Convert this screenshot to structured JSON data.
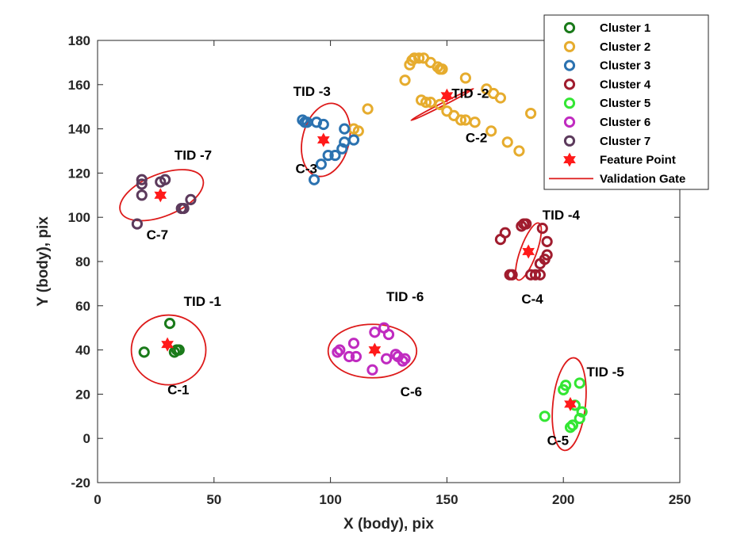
{
  "chart_data": {
    "type": "scatter",
    "xlabel": "X (body), pix",
    "ylabel": "Y (body), pix",
    "xlim": [
      0,
      250
    ],
    "ylim": [
      -20,
      180
    ],
    "xticks": [
      0,
      50,
      100,
      150,
      200,
      250
    ],
    "yticks": [
      -20,
      0,
      20,
      40,
      60,
      80,
      100,
      120,
      140,
      160,
      180
    ],
    "grid": false,
    "legend_position": "top-right",
    "series": [
      {
        "name": "Cluster 1",
        "color": "#1a7a1a",
        "marker": "circle-open",
        "points": [
          [
            20,
            39
          ],
          [
            31,
            52
          ],
          [
            33,
            39
          ],
          [
            34,
            40
          ],
          [
            35,
            40
          ]
        ]
      },
      {
        "name": "Cluster 2",
        "color": "#e6ac2e",
        "marker": "circle-open",
        "points": [
          [
            132,
            162
          ],
          [
            134,
            169
          ],
          [
            135,
            171
          ],
          [
            136,
            172
          ],
          [
            138,
            172
          ],
          [
            140,
            172
          ],
          [
            143,
            170
          ],
          [
            146,
            168
          ],
          [
            147,
            167
          ],
          [
            148,
            167
          ],
          [
            139,
            153
          ],
          [
            141,
            152
          ],
          [
            143,
            152
          ],
          [
            147,
            151
          ],
          [
            150,
            148
          ],
          [
            153,
            146
          ],
          [
            156,
            144
          ],
          [
            158,
            144
          ],
          [
            162,
            143
          ],
          [
            158,
            163
          ],
          [
            167,
            158
          ],
          [
            170,
            156
          ],
          [
            173,
            154
          ],
          [
            116,
            149
          ],
          [
            110,
            140
          ],
          [
            112,
            139
          ],
          [
            169,
            139
          ],
          [
            176,
            134
          ],
          [
            181,
            130
          ],
          [
            186,
            147
          ]
        ]
      },
      {
        "name": "Cluster 3",
        "color": "#2b72b0",
        "marker": "circle-open",
        "points": [
          [
            88,
            144
          ],
          [
            89,
            143
          ],
          [
            90,
            143
          ],
          [
            94,
            143
          ],
          [
            97,
            142
          ],
          [
            106,
            140
          ],
          [
            106,
            134
          ],
          [
            110,
            135
          ],
          [
            105,
            131
          ],
          [
            102,
            128
          ],
          [
            99,
            128
          ],
          [
            96,
            124
          ],
          [
            93,
            117
          ]
        ]
      },
      {
        "name": "Cluster 4",
        "color": "#a01c2e",
        "marker": "circle-open",
        "points": [
          [
            173,
            90
          ],
          [
            175,
            93
          ],
          [
            182,
            96
          ],
          [
            183,
            97
          ],
          [
            184,
            97
          ],
          [
            191,
            95
          ],
          [
            193,
            89
          ],
          [
            193,
            83
          ],
          [
            192,
            81
          ],
          [
            190,
            79
          ],
          [
            186,
            74
          ],
          [
            188,
            74
          ],
          [
            190,
            74
          ],
          [
            177,
            74
          ],
          [
            178,
            74
          ]
        ]
      },
      {
        "name": "Cluster 5",
        "color": "#33e633",
        "marker": "circle-open",
        "points": [
          [
            192,
            10
          ],
          [
            200,
            22
          ],
          [
            201,
            24
          ],
          [
            207,
            25
          ],
          [
            208,
            12
          ],
          [
            207,
            9
          ],
          [
            203,
            5
          ],
          [
            204,
            6
          ],
          [
            205,
            15
          ]
        ]
      },
      {
        "name": "Cluster 6",
        "color": "#c02bc0",
        "marker": "circle-open",
        "points": [
          [
            103,
            39
          ],
          [
            104,
            40
          ],
          [
            108,
            37
          ],
          [
            110,
            43
          ],
          [
            111,
            37
          ],
          [
            118,
            31
          ],
          [
            119,
            48
          ],
          [
            123,
            50
          ],
          [
            125,
            47
          ],
          [
            124,
            36
          ],
          [
            128,
            38
          ],
          [
            129,
            37
          ],
          [
            131,
            35
          ],
          [
            132,
            36
          ]
        ]
      },
      {
        "name": "Cluster 7",
        "color": "#5c3a5c",
        "marker": "circle-open",
        "points": [
          [
            17,
            97
          ],
          [
            19,
            110
          ],
          [
            19,
            117
          ],
          [
            19,
            115
          ],
          [
            27,
            116
          ],
          [
            29,
            117
          ],
          [
            36,
            104
          ],
          [
            37,
            104
          ],
          [
            40,
            108
          ]
        ]
      },
      {
        "name": "Feature Point",
        "color": "#ff1a1a",
        "marker": "hexagram",
        "points": [
          [
            30,
            42.5
          ],
          [
            150,
            155
          ],
          [
            97,
            135
          ],
          [
            185,
            84.5
          ],
          [
            203,
            15.5
          ],
          [
            119,
            40
          ],
          [
            27,
            110
          ]
        ]
      },
      {
        "name": "Validation Gate",
        "color": "#dd1a1a",
        "marker": "line",
        "ellipses": [
          {
            "label": "TID -1",
            "cx": 30.5,
            "cy": 40,
            "rx": 16,
            "ry": 15,
            "angle": 0
          },
          {
            "label": "TID -2",
            "cx": 148,
            "cy": 151,
            "rx": 15,
            "ry": 0.6,
            "angle": -27
          },
          {
            "label": "TID -3",
            "cx": 98,
            "cy": 135,
            "rx": 16,
            "ry": 10,
            "angle": -76
          },
          {
            "label": "TID -4",
            "cx": 185,
            "cy": 84.5,
            "rx": 13,
            "ry": 3.5,
            "angle": -70
          },
          {
            "label": "TID -5",
            "cx": 202.5,
            "cy": 15.5,
            "rx": 20,
            "ry": 7,
            "angle": -84
          },
          {
            "label": "TID -6",
            "cx": 118,
            "cy": 39.5,
            "rx": 19,
            "ry": 11.5,
            "angle": 0
          },
          {
            "label": "TID -7",
            "cx": 27.5,
            "cy": 110,
            "rx": 19,
            "ry": 9,
            "angle": -22
          }
        ]
      }
    ],
    "annotations": [
      {
        "text": "TID -1",
        "x": 37,
        "y": 60
      },
      {
        "text": "TID -2",
        "x": 152,
        "y": 154
      },
      {
        "text": "TID -3",
        "x": 84,
        "y": 155
      },
      {
        "text": "TID -4",
        "x": 191,
        "y": 99
      },
      {
        "text": "TID -5",
        "x": 210,
        "y": 28
      },
      {
        "text": "TID -6",
        "x": 124,
        "y": 62
      },
      {
        "text": "TID -7",
        "x": 33,
        "y": 126
      },
      {
        "text": "C-1",
        "x": 30,
        "y": 20
      },
      {
        "text": "C-2",
        "x": 158,
        "y": 134
      },
      {
        "text": "C-3",
        "x": 85,
        "y": 120
      },
      {
        "text": "C-4",
        "x": 182,
        "y": 61
      },
      {
        "text": "C-5",
        "x": 193,
        "y": -3
      },
      {
        "text": "C-6",
        "x": 130,
        "y": 19
      },
      {
        "text": "C-7",
        "x": 21,
        "y": 90
      }
    ]
  }
}
